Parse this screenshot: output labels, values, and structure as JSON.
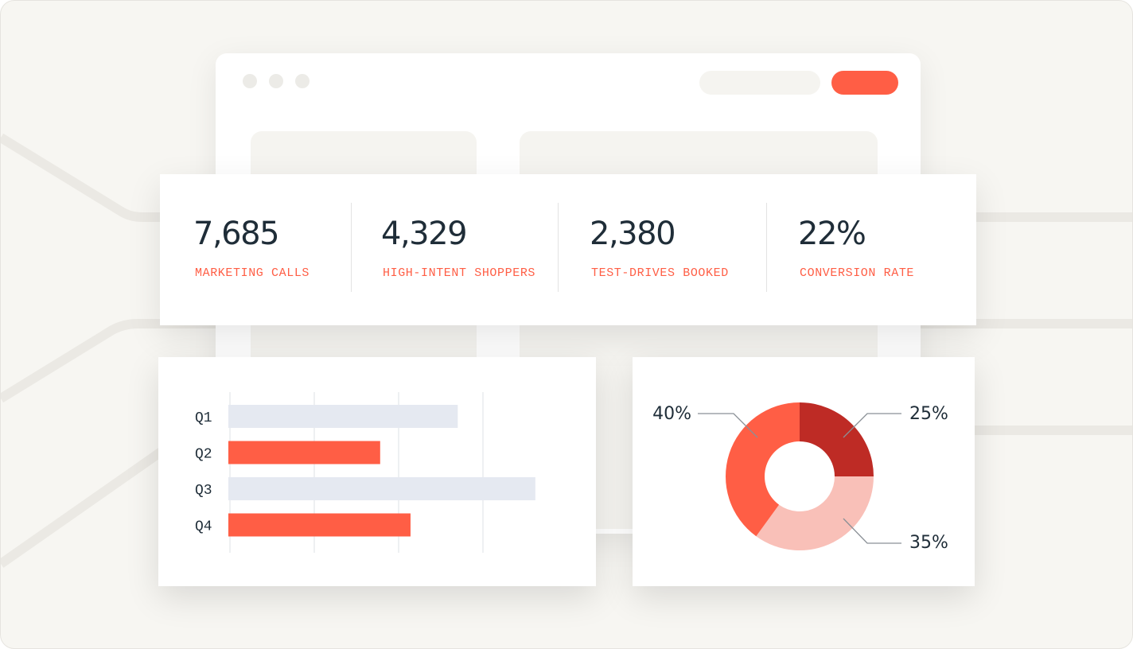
{
  "colors": {
    "accent": "#ff5e45",
    "dark_red": "#be2b25",
    "light_red": "#f9c0b8",
    "muted_bar": "#e5e9f1",
    "text_dark": "#1f2d38"
  },
  "browser": {
    "window_buttons": [
      "close-dot",
      "minimize-dot",
      "maximize-dot"
    ]
  },
  "kpis": [
    {
      "value": "7,685",
      "label": "MARKETING CALLS"
    },
    {
      "value": "4,329",
      "label": "HIGH-INTENT SHOPPERS"
    },
    {
      "value": "2,380",
      "label": "TEST-DRIVES BOOKED"
    },
    {
      "value": "22%",
      "label": "CONVERSION RATE"
    }
  ],
  "chart_data": [
    {
      "type": "bar",
      "orientation": "horizontal",
      "categories": [
        "Q1",
        "Q2",
        "Q3",
        "Q4"
      ],
      "values": [
        68,
        45,
        91,
        54
      ],
      "highlight": [
        false,
        true,
        false,
        true
      ],
      "xlim": [
        0,
        100
      ],
      "grid": true
    },
    {
      "type": "pie",
      "donut": true,
      "labels": [
        "25%",
        "35%",
        "40%"
      ],
      "values": [
        25,
        35,
        40
      ],
      "colors": [
        "#be2b25",
        "#f9c0b8",
        "#ff5e45"
      ]
    }
  ]
}
